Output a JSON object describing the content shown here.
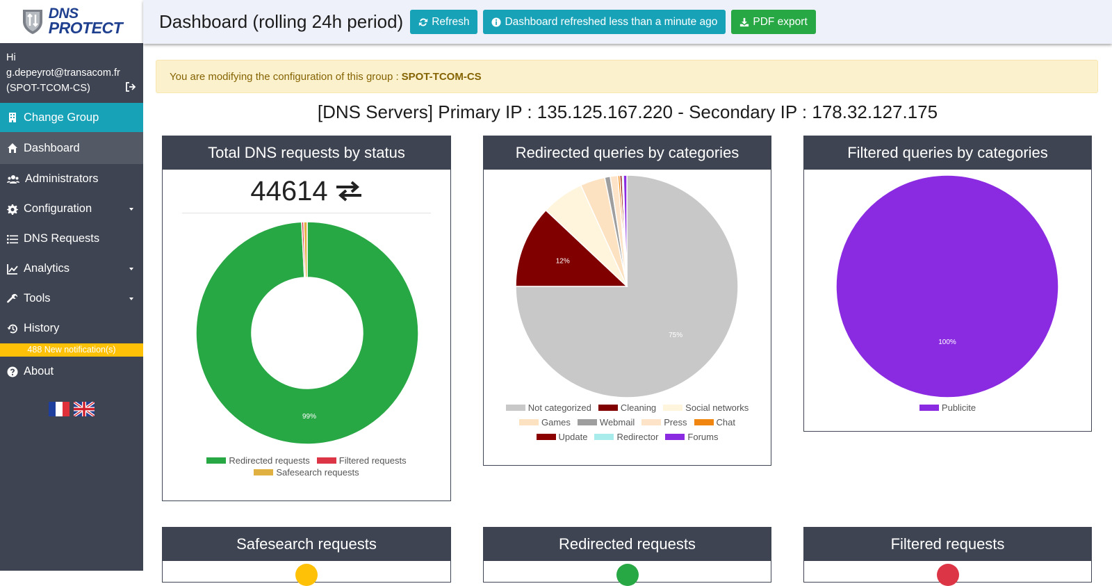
{
  "sidebar": {
    "logo": {
      "line1": "DNS",
      "line2": "PROTECT"
    },
    "user": {
      "greeting": "Hi",
      "email": "g.depeyrot@transacom.fr",
      "group": "(SPOT-TCOM-CS)"
    },
    "change_group": "Change Group",
    "items": [
      {
        "label": "Dashboard",
        "icon": "home-icon"
      },
      {
        "label": "Administrators",
        "icon": "users-icon"
      },
      {
        "label": "Configuration",
        "icon": "gear-icon"
      },
      {
        "label": "DNS Requests",
        "icon": "list-icon"
      },
      {
        "label": "Analytics",
        "icon": "chart-icon"
      },
      {
        "label": "Tools",
        "icon": "wrench-icon"
      },
      {
        "label": "History",
        "icon": "history-icon"
      }
    ],
    "notification": "488 New notification(s)",
    "about": "About"
  },
  "header": {
    "title": "Dashboard (rolling 24h period)",
    "refresh": "Refresh",
    "refreshed_status": "Dashboard refreshed less than a minute ago",
    "pdf_export": "PDF export"
  },
  "alert": {
    "text": "You are modifying the configuration of this group :",
    "group": "SPOT-TCOM-CS"
  },
  "servers": "[DNS Servers] Primary IP : 135.125.167.220 - Secondary IP : 178.32.127.175",
  "cards": {
    "total": {
      "title": "Total DNS requests by status",
      "count": "44614"
    },
    "redirected_categories": {
      "title": "Redirected queries by categories"
    },
    "filtered_categories": {
      "title": "Filtered queries by categories"
    },
    "safesearch": {
      "title": "Safesearch requests"
    },
    "redirected": {
      "title": "Redirected requests"
    },
    "filtered": {
      "title": "Filtered requests"
    }
  },
  "colors": {
    "sidebar": "#3e4451",
    "accent": "#17a2b8",
    "success": "#28a745",
    "warning": "#ffc107",
    "danger": "#dc3545"
  },
  "chart_data": [
    {
      "type": "pie",
      "variant": "doughnut",
      "title": "Total DNS requests by status",
      "categories": [
        "Redirected requests",
        "Filtered requests",
        "Safesearch requests"
      ],
      "values": [
        99.2,
        0.3,
        0.5
      ],
      "colors": [
        "#28a745",
        "#dc3545",
        "#e0b040"
      ],
      "data_labels": [
        "99%",
        "",
        ""
      ]
    },
    {
      "type": "pie",
      "title": "Redirected queries by categories",
      "categories": [
        "Not categorized",
        "Cleaning",
        "Social networks",
        "Games",
        "Webmail",
        "Press",
        "Chat",
        "Update",
        "Redirector",
        "Forums"
      ],
      "values": [
        75,
        12,
        6.2,
        3.6,
        0.8,
        1.1,
        0.3,
        0.3,
        0.2,
        0.5
      ],
      "colors": [
        "#c8c8c8",
        "#800000",
        "#fff5dc",
        "#fde2c2",
        "#9e9e9e",
        "#fde4c8",
        "#f0850f",
        "#8b0000",
        "#a8ecec",
        "#8a2be2"
      ],
      "data_labels": [
        "75%",
        "12%",
        "",
        "",
        "",
        "",
        "",
        "",
        "",
        ""
      ]
    },
    {
      "type": "pie",
      "title": "Filtered queries by categories",
      "categories": [
        "Publicite"
      ],
      "values": [
        100
      ],
      "colors": [
        "#8a2be2"
      ],
      "data_labels": [
        "100%"
      ]
    }
  ]
}
